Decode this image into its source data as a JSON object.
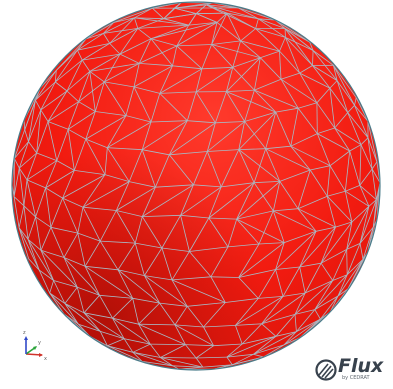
{
  "scene": {
    "object": "meshed-sphere",
    "colors": {
      "fill": "#f21b10",
      "shade": "#a30d06",
      "highlight": "#ff4a3c",
      "mesh": "#a9b9c4",
      "outline": "#4a7c8a"
    }
  },
  "axes": {
    "x_label": "x",
    "y_label": "y",
    "z_label": "z",
    "colors": {
      "x": "#d0342c",
      "y": "#2aa43a",
      "z": "#3048c8"
    }
  },
  "logo": {
    "name": "Flux",
    "subtitle": "by CEDRAT",
    "icon": "flux-logo-icon"
  }
}
